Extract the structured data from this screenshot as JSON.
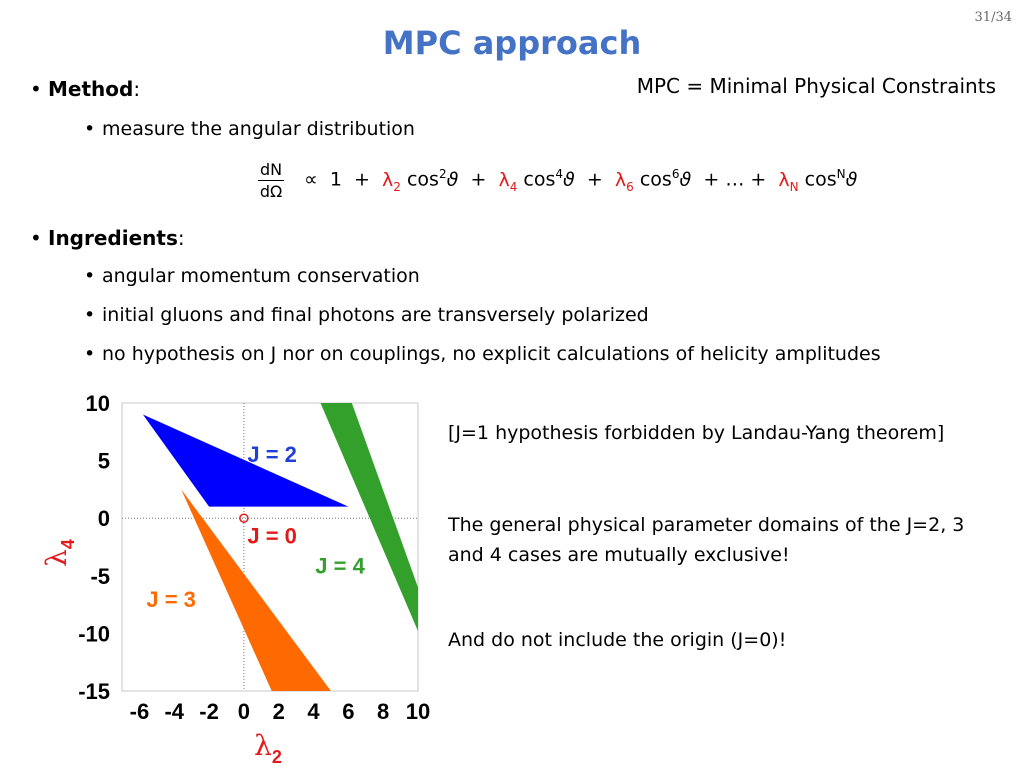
{
  "slide": {
    "number": "31/34",
    "title": "MPC approach",
    "note": "MPC = Minimal Physical Constraints"
  },
  "method": {
    "label": "Method",
    "colon": ":",
    "sub_bullet": "measure the angular distribution"
  },
  "formula": {
    "numerator": "dN",
    "denominator": "dΩ",
    "proportional": "∝",
    "one": "1",
    "plus": "+",
    "lambda": "λ",
    "idx2": "2",
    "idx4": "4",
    "idx6": "6",
    "idxN": "N",
    "cos": "cos",
    "theta": "ϑ",
    "ellipsis": "…"
  },
  "ingredients": {
    "label": "Ingredients",
    "colon": ":",
    "items": [
      "angular momentum conservation",
      "initial gluons and final photons are transversely polarized",
      "no hypothesis on J nor on couplings, no explicit calculations of helicity amplitudes"
    ]
  },
  "side_text": {
    "landau": "[J=1 hypothesis forbidden by Landau-Yang theorem]",
    "exclusive": "The general physical parameter domains of the J=2, 3 and 4 cases are mutually exclusive!",
    "origin": "And do not include the origin (J=0)!"
  },
  "chart_data": {
    "type": "area",
    "xlabel": "λ2",
    "ylabel": "λ4",
    "xlim": [
      -7,
      10
    ],
    "ylim": [
      -15,
      10
    ],
    "x_ticks": [
      -6,
      -4,
      -2,
      0,
      2,
      4,
      6,
      8,
      10
    ],
    "y_ticks": [
      10,
      5,
      0,
      -5,
      -10,
      -15
    ],
    "grid": false,
    "series": [
      {
        "name": "J = 2",
        "color": "#0000ff",
        "vertices": [
          [
            -5.8,
            9
          ],
          [
            -2,
            1
          ],
          [
            6,
            1
          ]
        ]
      },
      {
        "name": "J = 3",
        "color": "#ff6a00",
        "vertices": [
          [
            -3.6,
            2.5
          ],
          [
            1.6,
            -15
          ],
          [
            5,
            -15
          ]
        ]
      },
      {
        "name": "J = 4",
        "color": "#33a02c",
        "vertices": [
          [
            4.4,
            10
          ],
          [
            6.2,
            10
          ],
          [
            10,
            -6
          ],
          [
            10,
            -9.8
          ]
        ]
      },
      {
        "name": "J = 0",
        "color": "#e41a1a",
        "point": [
          0,
          0
        ]
      }
    ],
    "reference_lines": {
      "x": 0,
      "y": 0,
      "style": "dotted"
    },
    "label_colors": {
      "J = 2": "#1f3fd9",
      "J = 3": "#ff6a00",
      "J = 4": "#33a02c",
      "J = 0": "#e41a1a"
    }
  }
}
